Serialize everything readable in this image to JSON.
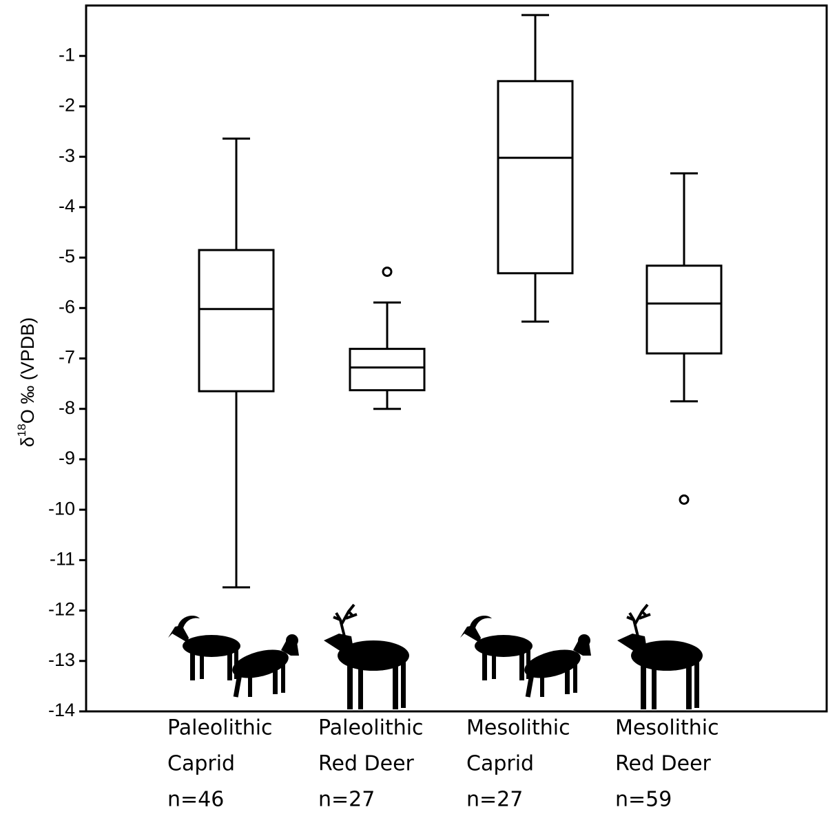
{
  "chart_data": {
    "type": "box",
    "y_label": {
      "prefix": "δ",
      "sup": "18",
      "suffix": "O ‰ (VPDB)"
    },
    "categories": [
      [
        "Paleolithic",
        "Caprid",
        "n=46"
      ],
      [
        "Paleolithic",
        "Red Deer",
        "n=27"
      ],
      [
        "Mesolithic",
        "Caprid",
        "n=27"
      ],
      [
        "Mesolithic",
        "Red Deer",
        "n=59"
      ]
    ],
    "boxes": [
      {
        "whisker_low": -11.54,
        "q1": -7.65,
        "median": -6.02,
        "q3": -4.85,
        "whisker_high": -2.64,
        "outliers": []
      },
      {
        "whisker_low": -8.0,
        "q1": -7.63,
        "median": -7.18,
        "q3": -6.81,
        "whisker_high": -5.89,
        "outliers": [
          -5.28
        ]
      },
      {
        "whisker_low": -6.27,
        "q1": -5.31,
        "median": -3.02,
        "q3": -1.5,
        "whisker_high": -0.19,
        "outliers": []
      },
      {
        "whisker_low": -7.85,
        "q1": -6.9,
        "median": -5.91,
        "q3": -5.16,
        "whisker_high": -3.33,
        "outliers": [
          -9.8
        ]
      }
    ],
    "color": "#000000",
    "ylim": [
      -14,
      0
    ],
    "yticks": [
      -14,
      -13,
      -12,
      -11,
      -10,
      -9,
      -8,
      -7,
      -6,
      -5,
      -4,
      -3,
      -2,
      -1
    ],
    "grid": false
  }
}
